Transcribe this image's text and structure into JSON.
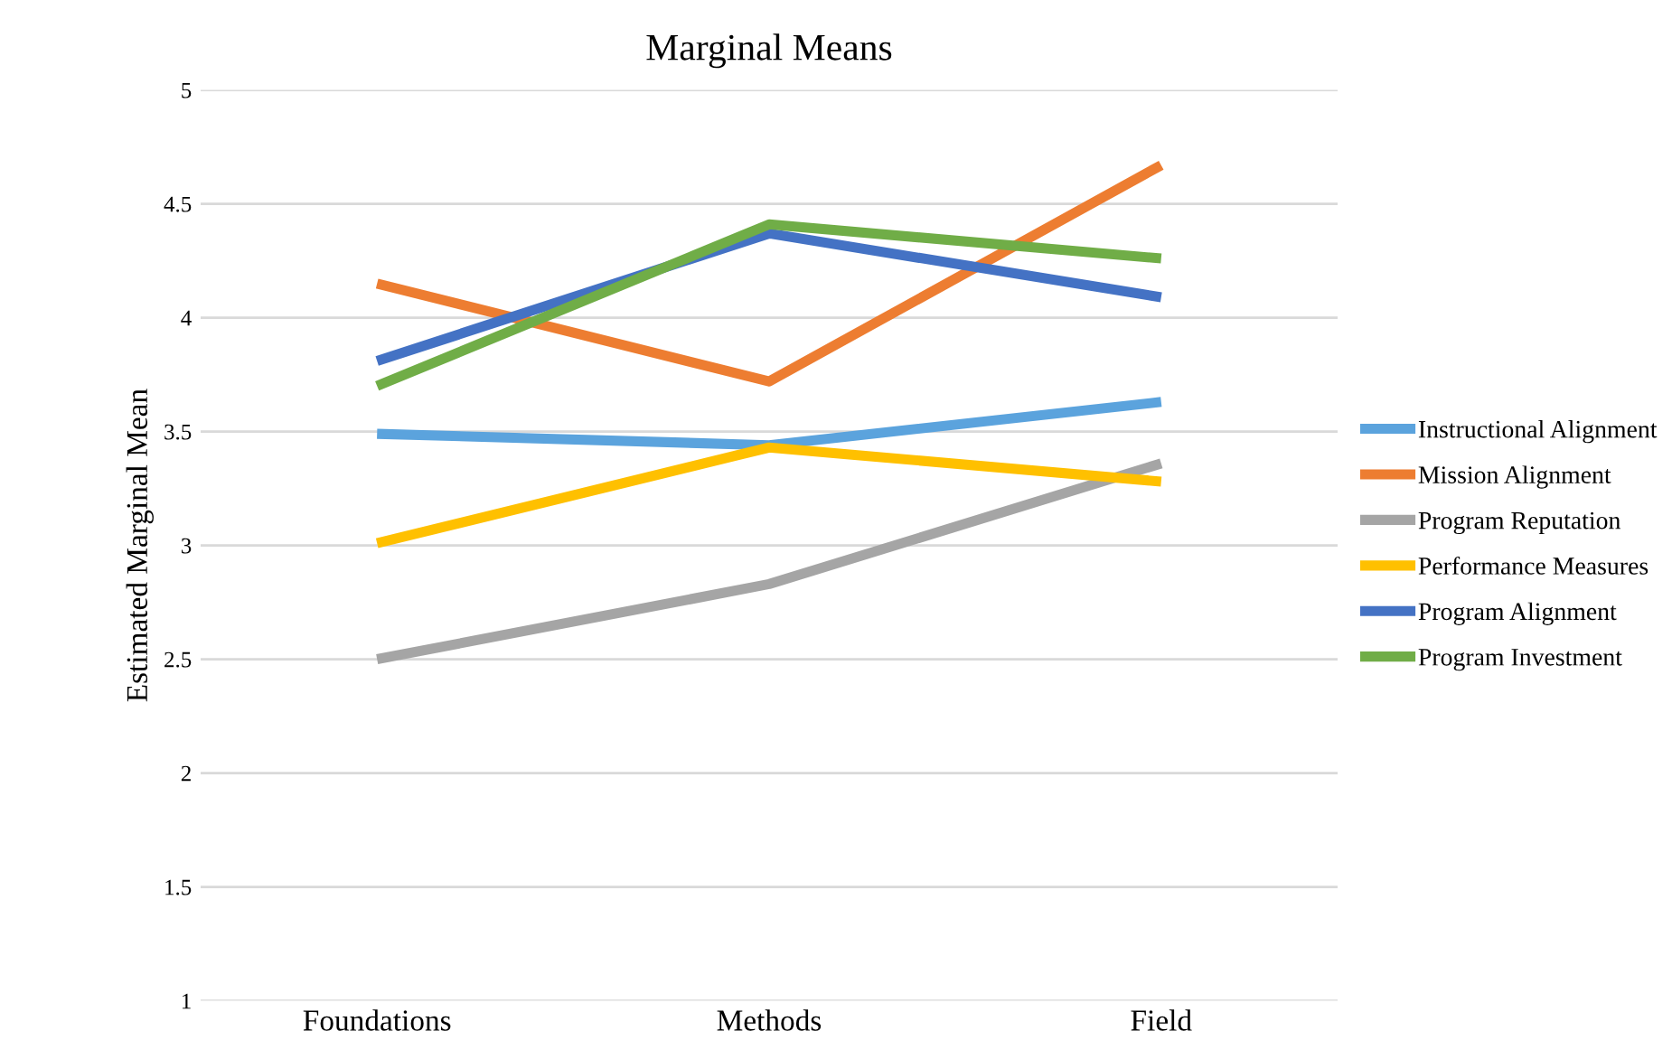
{
  "chart_data": {
    "type": "line",
    "title": "Marginal Means",
    "ylabel": "Estimated Marginal Mean",
    "categories": [
      "Foundations",
      "Methods",
      "Field"
    ],
    "series": [
      {
        "name": "Instructional Alignment",
        "color": "#5ba3dd",
        "values": [
          3.49,
          3.44,
          3.63
        ]
      },
      {
        "name": "Mission Alignment",
        "color": "#ed7d31",
        "values": [
          4.15,
          3.72,
          4.67
        ]
      },
      {
        "name": "Program Reputation",
        "color": "#a5a5a5",
        "values": [
          2.5,
          2.83,
          3.36
        ]
      },
      {
        "name": "Performance Measures",
        "color": "#ffc000",
        "values": [
          3.01,
          3.43,
          3.28
        ]
      },
      {
        "name": "Program Alignment",
        "color": "#4472c4",
        "values": [
          3.81,
          4.37,
          4.09
        ]
      },
      {
        "name": "Program Investment",
        "color": "#70ad47",
        "values": [
          3.7,
          4.41,
          4.26
        ]
      }
    ],
    "ylim": [
      1,
      5
    ],
    "yticks": [
      1,
      1.5,
      2,
      2.5,
      3,
      3.5,
      4,
      4.5,
      5
    ],
    "grid": "y",
    "legend": "right",
    "marker": "none",
    "line_style": "solid"
  }
}
